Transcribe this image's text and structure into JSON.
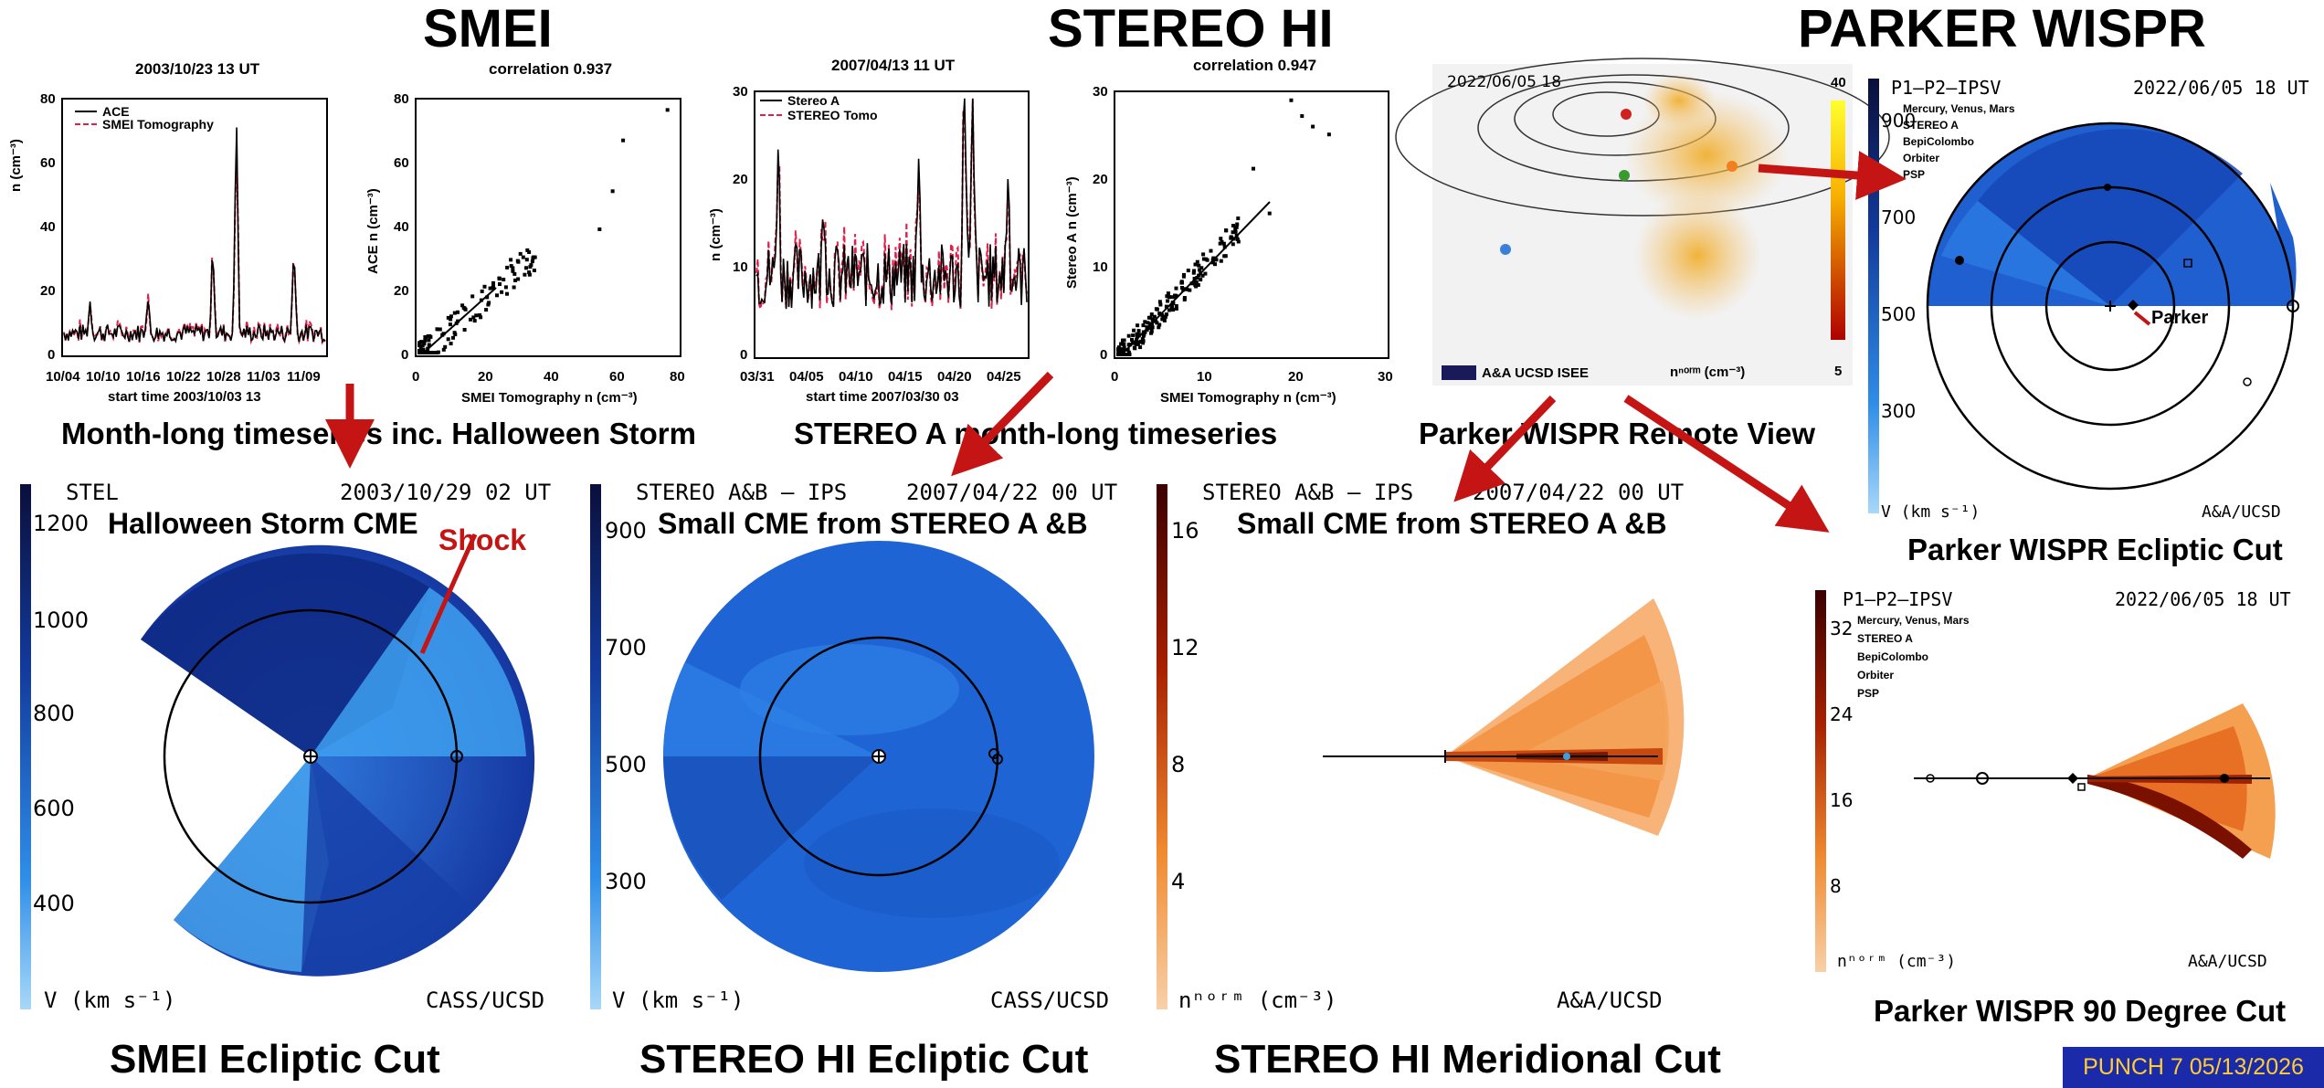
{
  "headings": {
    "smei": "SMEI",
    "stereo_hi": "STEREO HI",
    "parker_wispr": "PARKER WISPR"
  },
  "top_row": {
    "smei_timeseries": {
      "title": "2003/10/23 13 UT",
      "ylabel": "n (cm⁻³)",
      "yticks": [
        "80",
        "60",
        "40",
        "20",
        "0"
      ],
      "xticks": [
        "10/04",
        "10/10",
        "10/16",
        "10/22",
        "10/28",
        "11/03",
        "11/09"
      ],
      "xlabel": "start time 2003/10/03 13",
      "legend": [
        "ACE",
        "SMEI Tomography"
      ],
      "caption": "Month-long timeseries inc. Halloween Storm"
    },
    "smei_correlation": {
      "title": "correlation 0.937",
      "ylabel": "ACE n (cm⁻³)",
      "yticks": [
        "80",
        "60",
        "40",
        "20",
        "0"
      ],
      "xticks": [
        "0",
        "20",
        "40",
        "60",
        "80"
      ],
      "xlabel": "SMEI Tomography n (cm⁻³)"
    },
    "stereo_timeseries": {
      "title": "2007/04/13 11 UT",
      "ylabel": "n (cm⁻³)",
      "yticks": [
        "30",
        "20",
        "10",
        "0"
      ],
      "xticks": [
        "03/31",
        "04/05",
        "04/10",
        "04/15",
        "04/20",
        "04/25"
      ],
      "xlabel": "start time 2007/03/30 03",
      "legend": [
        "Stereo A",
        "STEREO Tomo"
      ],
      "caption": "STEREO A month-long timeseries"
    },
    "stereo_correlation": {
      "title": "correlation 0.947",
      "ylabel": "Stereo A n (cm⁻³)",
      "yticks": [
        "30",
        "20",
        "10",
        "0"
      ],
      "xticks": [
        "0",
        "10",
        "20",
        "30"
      ],
      "xlabel": "SMEI Tomography n (cm⁻³)"
    },
    "parker_remote": {
      "date": "2022/06/05  18",
      "scale_top": "40",
      "scale_bottom": "5",
      "unit": "nⁿᵒʳᵐ (cm⁻³)",
      "logos": "A&A  UCSD  ISEE",
      "caption": "Parker WISPR Remote View"
    }
  },
  "panels": {
    "smei_ecliptic": {
      "left_label": "STEL",
      "date": "2003/10/29 02 UT",
      "title": "Halloween Storm CME",
      "colorbar_ticks": [
        "1200",
        "1000",
        "800",
        "600",
        "400"
      ],
      "unit": "V (km s⁻¹)",
      "credit": "CASS/UCSD",
      "annotation": "Shock",
      "caption": "SMEI Ecliptic Cut"
    },
    "stereo_ecliptic": {
      "left_label": "STEREO A&B – IPS",
      "date": "2007/04/22 00 UT",
      "title": "Small CME from STEREO A &B",
      "colorbar_ticks": [
        "900",
        "700",
        "500",
        "300"
      ],
      "unit": "V (km s⁻¹)",
      "credit": "CASS/UCSD",
      "caption": "STEREO HI Ecliptic Cut"
    },
    "stereo_meridional": {
      "left_label": "STEREO A&B – IPS",
      "date": "2007/04/22 00 UT",
      "title": "Small CME from STEREO A &B",
      "colorbar_ticks": [
        "16",
        "12",
        "8",
        "4"
      ],
      "unit": "nⁿᵒʳᵐ (cm⁻³)",
      "credit": "A&A/UCSD",
      "caption": "STEREO HI Meridional Cut"
    },
    "parker_ecliptic": {
      "left_label": "P1–P2–IPSV",
      "date": "2022/06/05 18 UT",
      "legend": [
        "Mercury, Venus, Mars",
        "STEREO A",
        "BepiColombo",
        "Orbiter",
        "PSP"
      ],
      "colorbar_ticks": [
        "900",
        "700",
        "500",
        "300"
      ],
      "unit": "V (km s⁻¹)",
      "credit": "A&A/UCSD",
      "annotation": "Parker",
      "caption": "Parker WISPR Ecliptic Cut"
    },
    "parker_90deg": {
      "left_label": "P1–P2–IPSV",
      "date": "2022/06/05 18 UT",
      "legend": [
        "Mercury, Venus, Mars",
        "STEREO A",
        "BepiColombo",
        "Orbiter",
        "PSP"
      ],
      "colorbar_ticks": [
        "32",
        "24",
        "16",
        "8"
      ],
      "unit": "nⁿᵒʳᵐ (cm⁻³)",
      "credit": "A&A/UCSD",
      "caption": "Parker WISPR 90 Degree Cut"
    }
  },
  "footer": "PUNCH 7 05/13/2026",
  "colors": {
    "arrow_red": "#c41414",
    "velocity_dark": "#0a1a6e",
    "velocity_light": "#3f9df0",
    "density_dark": "#5a0a00",
    "density_light": "#f7b26a"
  }
}
